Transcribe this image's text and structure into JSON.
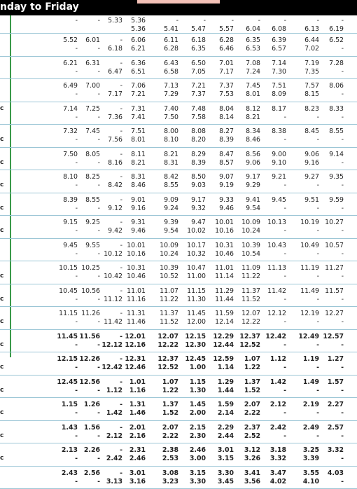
{
  "header": {
    "title": "nday to Friday"
  },
  "rows": [
    {
      "a": [
        "",
        "-",
        "-",
        "5.33",
        "5.36",
        "-",
        "-",
        "-",
        "-",
        "-",
        "-",
        "-",
        "-"
      ],
      "b": [
        "",
        "",
        "",
        "",
        "5.36",
        "5.41",
        "5.47",
        "5.57",
        "6.04",
        "6.08",
        "6.13",
        "6.19",
        ""
      ]
    },
    {
      "a": [
        "",
        "5.52",
        "6.01",
        "-",
        "6.06",
        "6.11",
        "6.18",
        "6.28",
        "6.35",
        "6.39",
        "6.44",
        "6.52",
        ""
      ],
      "b": [
        "",
        "-",
        "-",
        "6.18",
        "6.21",
        "6.28",
        "6.35",
        "6.46",
        "6.53",
        "6.57",
        "7.02",
        "-",
        ""
      ]
    },
    {
      "a": [
        "",
        "6.21",
        "6.31",
        "-",
        "6.36",
        "6.43",
        "6.50",
        "7.01",
        "7.08",
        "7.14",
        "7.19",
        "7.28",
        ""
      ],
      "b": [
        "",
        "-",
        "-",
        "6.47",
        "6.51",
        "6.58",
        "7.05",
        "7.17",
        "7.24",
        "7.30",
        "7.35",
        "-",
        ""
      ]
    },
    {
      "a": [
        "",
        "6.49",
        "7.00",
        "-",
        "7.06",
        "7.13",
        "7.21",
        "7.37",
        "7.45",
        "7.51",
        "7.57",
        "8.06",
        ""
      ],
      "b": [
        "",
        "-",
        "-",
        "7.17",
        "7.21",
        "7.29",
        "7.37",
        "7.53",
        "8.01",
        "8.09",
        "8.15",
        "-",
        ""
      ]
    },
    {
      "a": [
        "c",
        "7.14",
        "7.25",
        "-",
        "7.31",
        "7.40",
        "7.48",
        "8.04",
        "8.12",
        "8.17",
        "8.23",
        "8.33",
        ""
      ],
      "b": [
        "",
        "-",
        "-",
        "7.36",
        "7.41",
        "7.50",
        "7.58",
        "8.14",
        "8.21",
        "-",
        "-",
        "-",
        ""
      ]
    },
    {
      "a": [
        "",
        "7.32",
        "7.45",
        "-",
        "7.51",
        "8.00",
        "8.08",
        "8.27",
        "8.34",
        "8.38",
        "8.45",
        "8.55",
        ""
      ],
      "b": [
        "c",
        "-",
        "-",
        "7.56",
        "8.01",
        "8.10",
        "8.20",
        "8.39",
        "8.46",
        "-",
        "-",
        "-",
        ""
      ]
    },
    {
      "a": [
        "",
        "7.50",
        "8.05",
        "-",
        "8.11",
        "8.21",
        "8.29",
        "8.47",
        "8.56",
        "9.00",
        "9.06",
        "9.14",
        ""
      ],
      "b": [
        "c",
        "-",
        "-",
        "8.16",
        "8.21",
        "8.31",
        "8.39",
        "8.57",
        "9.06",
        "9.10",
        "9.16",
        "-",
        ""
      ]
    },
    {
      "a": [
        "",
        "8.10",
        "8.25",
        "-",
        "8.31",
        "8.42",
        "8.50",
        "9.07",
        "9.17",
        "9.21",
        "9.27",
        "9.35",
        ""
      ],
      "b": [
        "c",
        "-",
        "-",
        "8.42",
        "8.46",
        "8.55",
        "9.03",
        "9.19",
        "9.29",
        "-",
        "-",
        "-",
        ""
      ]
    },
    {
      "a": [
        "",
        "8.39",
        "8.55",
        "-",
        "9.01",
        "9.09",
        "9.17",
        "9.33",
        "9.41",
        "9.45",
        "9.51",
        "9.59",
        ""
      ],
      "b": [
        "c",
        "-",
        "-",
        "9.12",
        "9.16",
        "9.24",
        "9.32",
        "9.46",
        "9.54",
        "-",
        "-",
        "-",
        ""
      ]
    },
    {
      "a": [
        "",
        "9.15",
        "9.25",
        "-",
        "9.31",
        "9.39",
        "9.47",
        "10.01",
        "10.09",
        "10.13",
        "10.19",
        "10.27",
        ""
      ],
      "b": [
        "c",
        "-",
        "-",
        "9.42",
        "9.46",
        "9.54",
        "10.02",
        "10.16",
        "10.24",
        "-",
        "-",
        "-",
        ""
      ]
    },
    {
      "a": [
        "",
        "9.45",
        "9.55",
        "-",
        "10.01",
        "10.09",
        "10.17",
        "10.31",
        "10.39",
        "10.43",
        "10.49",
        "10.57",
        ""
      ],
      "b": [
        "",
        "-",
        "-",
        "10.12",
        "10.16",
        "10.24",
        "10.32",
        "10.46",
        "10.54",
        "-",
        "-",
        "-",
        ""
      ]
    },
    {
      "a": [
        "",
        "10.15",
        "10.25",
        "-",
        "10.31",
        "10.39",
        "10.47",
        "11.01",
        "11.09",
        "11.13",
        "11.19",
        "11.27",
        ""
      ],
      "b": [
        "c",
        "-",
        "-",
        "10.42",
        "10.46",
        "10.52",
        "11.00",
        "11.14",
        "11.22",
        "-",
        "-",
        "-",
        ""
      ]
    },
    {
      "a": [
        "",
        "10.45",
        "10.56",
        "-",
        "11.01",
        "11.07",
        "11.15",
        "11.29",
        "11.37",
        "11.42",
        "11.49",
        "11.57",
        ""
      ],
      "b": [
        "c",
        "-",
        "-",
        "11.12",
        "11.16",
        "11.22",
        "11.30",
        "11.44",
        "11.52",
        "-",
        "-",
        "-",
        ""
      ]
    },
    {
      "a": [
        "",
        "11.15",
        "11.26",
        "-",
        "11.31",
        "11.37",
        "11.45",
        "11.59",
        "12.07",
        "12.12",
        "12.19",
        "12.27",
        ""
      ],
      "b": [
        "c",
        "-",
        "-",
        "11.42",
        "11.46",
        "11.52",
        "12.00",
        "12.14",
        "12.22",
        "-",
        "-",
        "-",
        ""
      ]
    },
    {
      "a": [
        "",
        "11.45",
        "11.56",
        "-",
        "12.01",
        "12.07",
        "12.15",
        "12.29",
        "12.37",
        "12.42",
        "12.49",
        "12.57",
        ""
      ],
      "b": [
        "c",
        "-",
        "-",
        "12.12",
        "12.16",
        "12.22",
        "12.30",
        "12.44",
        "12.52",
        "-",
        "-",
        "-",
        ""
      ]
    },
    {
      "a": [
        "",
        "12.15",
        "12.26",
        "-",
        "12.31",
        "12.37",
        "12.45",
        "12.59",
        "1.07",
        "1.12",
        "1.19",
        "1.27",
        ""
      ],
      "b": [
        "c",
        "-",
        "-",
        "12.42",
        "12.46",
        "12.52",
        "1.00",
        "1.14",
        "1.22",
        "-",
        "-",
        "-",
        ""
      ]
    },
    {
      "a": [
        "",
        "12.45",
        "12.56",
        "-",
        "1.01",
        "1.07",
        "1.15",
        "1.29",
        "1.37",
        "1.42",
        "1.49",
        "1.57",
        ""
      ],
      "b": [
        "c",
        "-",
        "-",
        "1.12",
        "1.16",
        "1.22",
        "1.30",
        "1.44",
        "1.52",
        "-",
        "-",
        "-",
        ""
      ]
    },
    {
      "a": [
        "",
        "1.15",
        "1.26",
        "-",
        "1.31",
        "1.37",
        "1.45",
        "1.59",
        "2.07",
        "2.12",
        "2.19",
        "2.27",
        ""
      ],
      "b": [
        "c",
        "-",
        "-",
        "1.42",
        "1.46",
        "1.52",
        "2.00",
        "2.14",
        "2.22",
        "-",
        "-",
        "-",
        ""
      ]
    },
    {
      "a": [
        "",
        "1.43",
        "1.56",
        "-",
        "2.01",
        "2.07",
        "2.15",
        "2.29",
        "2.37",
        "2.42",
        "2.49",
        "2.57",
        ""
      ],
      "b": [
        "c",
        "-",
        "-",
        "2.12",
        "2.16",
        "2.22",
        "2.30",
        "2.44",
        "2.52",
        "-",
        "-",
        "-",
        ""
      ]
    },
    {
      "a": [
        "",
        "2.13",
        "2.26",
        "-",
        "2.31",
        "2.38",
        "2.46",
        "3.01",
        "3.12",
        "3.18",
        "3.25",
        "3.32",
        ""
      ],
      "b": [
        "c",
        "-",
        "-",
        "2.42",
        "2.46",
        "2.53",
        "3.00",
        "3.15",
        "3.26",
        "3.32",
        "3.39",
        "-",
        ""
      ]
    },
    {
      "a": [
        "",
        "2.43",
        "2.56",
        "-",
        "3.01",
        "3.08",
        "3.15",
        "3.30",
        "3.41",
        "3.47",
        "3.55",
        "4.03",
        ""
      ],
      "b": [
        "",
        "-",
        "-",
        "3.13",
        "3.16",
        "3.23",
        "3.30",
        "3.45",
        "3.56",
        "4.02",
        "4.10",
        "-",
        ""
      ]
    }
  ]
}
